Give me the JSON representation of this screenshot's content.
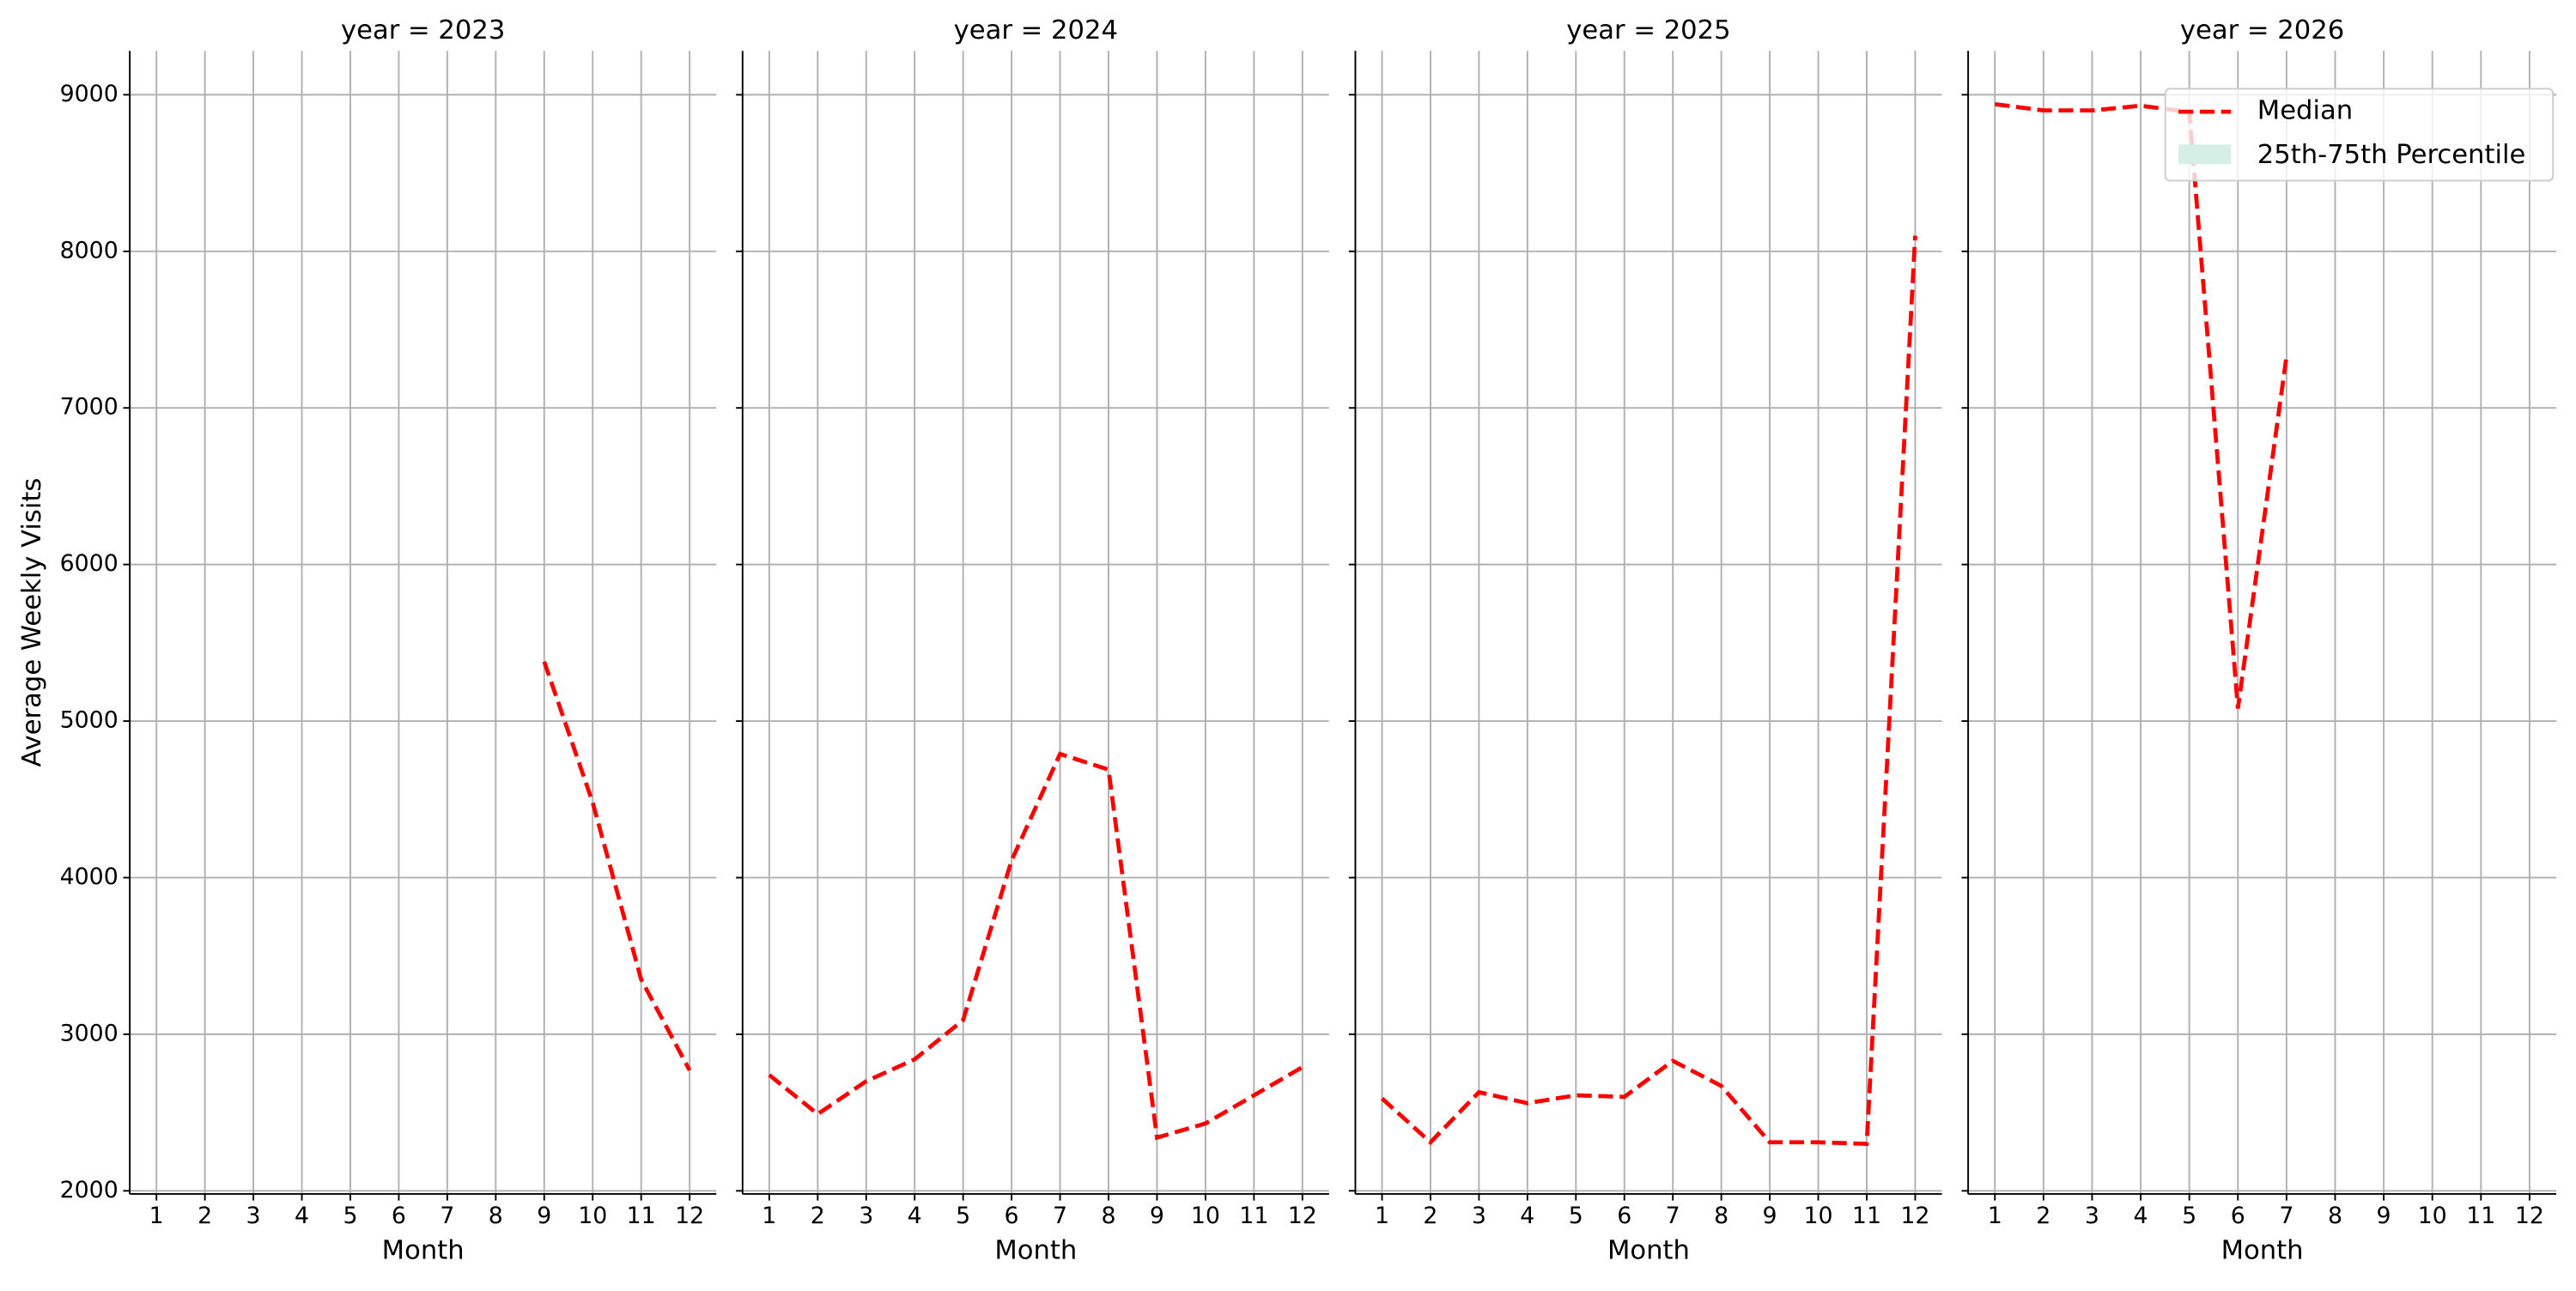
{
  "chart_data": [
    {
      "type": "line",
      "title": "year = 2023",
      "x_label": "Month",
      "y_label": "Average Weekly Visits",
      "x": [
        9,
        10,
        11,
        12
      ],
      "series": [
        {
          "name": "Median",
          "color": "#ff0000",
          "values": [
            5380,
            4480,
            3350,
            2770
          ]
        }
      ],
      "xlim": [
        0.45,
        12.55
      ],
      "xticks": [
        1,
        2,
        3,
        4,
        5,
        6,
        7,
        8,
        9,
        10,
        11,
        12
      ],
      "ylim": [
        1980,
        9280
      ],
      "yticks": [
        2000,
        3000,
        4000,
        5000,
        6000,
        7000,
        8000,
        9000
      ],
      "grid": true
    },
    {
      "type": "line",
      "title": "year = 2024",
      "x_label": "Month",
      "x": [
        1,
        2,
        3,
        4,
        5,
        6,
        7,
        8,
        9,
        10,
        11,
        12
      ],
      "series": [
        {
          "name": "Median",
          "color": "#ff0000",
          "values": [
            2740,
            2490,
            2700,
            2840,
            3090,
            4110,
            4790,
            4690,
            2340,
            2430,
            2610,
            2790
          ]
        }
      ],
      "xlim": [
        0.45,
        12.55
      ],
      "xticks": [
        1,
        2,
        3,
        4,
        5,
        6,
        7,
        8,
        9,
        10,
        11,
        12
      ],
      "ylim": [
        1980,
        9280
      ],
      "yticks": [
        2000,
        3000,
        4000,
        5000,
        6000,
        7000,
        8000,
        9000
      ],
      "grid": true
    },
    {
      "type": "line",
      "title": "year = 2025",
      "x_label": "Month",
      "x": [
        1,
        2,
        3,
        4,
        5,
        6,
        7,
        8,
        9,
        10,
        11,
        12
      ],
      "series": [
        {
          "name": "Median",
          "color": "#ff0000",
          "values": [
            2590,
            2310,
            2630,
            2560,
            2610,
            2600,
            2830,
            2670,
            2310,
            2310,
            2300,
            8100
          ]
        }
      ],
      "xlim": [
        0.45,
        12.55
      ],
      "xticks": [
        1,
        2,
        3,
        4,
        5,
        6,
        7,
        8,
        9,
        10,
        11,
        12
      ],
      "ylim": [
        1980,
        9280
      ],
      "yticks": [
        2000,
        3000,
        4000,
        5000,
        6000,
        7000,
        8000,
        9000
      ],
      "grid": true
    },
    {
      "type": "line",
      "title": "year = 2026",
      "x_label": "Month",
      "x": [
        1,
        2,
        3,
        4,
        5,
        6,
        7
      ],
      "series": [
        {
          "name": "Median",
          "color": "#ff0000",
          "values": [
            8940,
            8900,
            8900,
            8930,
            8890,
            5080,
            7330
          ]
        }
      ],
      "band": {
        "name": "25th-75th Percentile",
        "color": "#d6efe6"
      },
      "legend": "upper right",
      "xlim": [
        0.45,
        12.55
      ],
      "xticks": [
        1,
        2,
        3,
        4,
        5,
        6,
        7,
        8,
        9,
        10,
        11,
        12
      ],
      "ylim": [
        1980,
        9280
      ],
      "yticks": [
        2000,
        3000,
        4000,
        5000,
        6000,
        7000,
        8000,
        9000
      ],
      "grid": true
    }
  ]
}
